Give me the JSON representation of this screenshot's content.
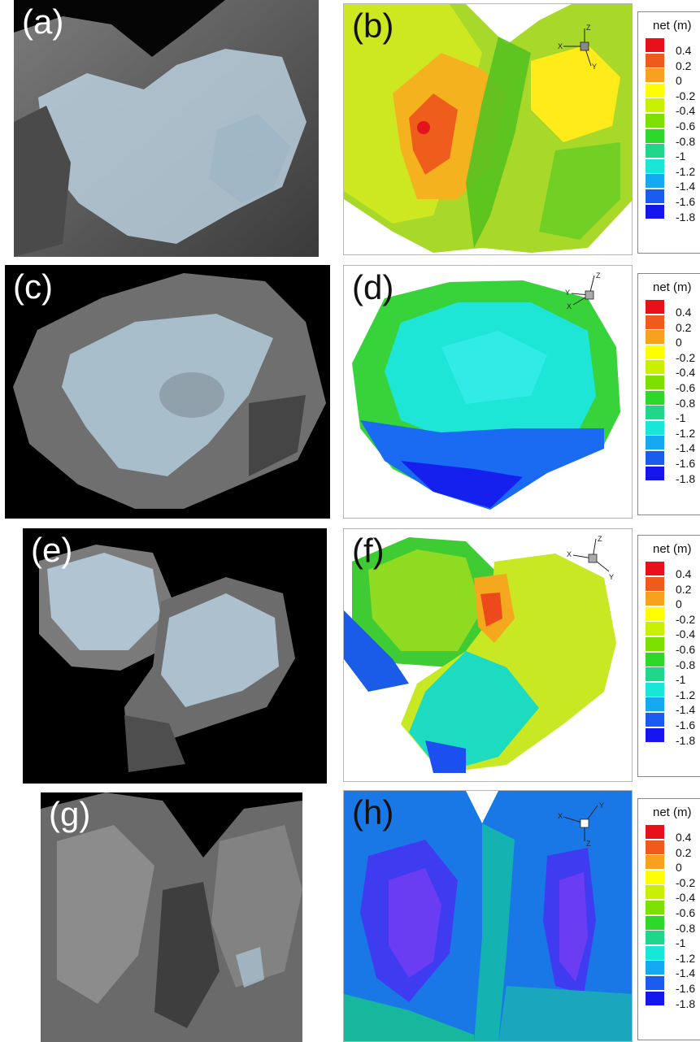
{
  "panels": [
    {
      "label": "(a)"
    },
    {
      "label": "(b)"
    },
    {
      "label": "(c)"
    },
    {
      "label": "(d)"
    },
    {
      "label": "(e)"
    },
    {
      "label": "(f)"
    },
    {
      "label": "(g)"
    },
    {
      "label": "(h)"
    }
  ],
  "legend": {
    "title": "net (m)",
    "ticks": [
      "0.4",
      "0.2",
      "0",
      "-0.2",
      "-0.4",
      "-0.6",
      "-0.8",
      "-1",
      "-1.2",
      "-1.4",
      "-1.6",
      "-1.8"
    ],
    "colors": [
      "#e8101a",
      "#f05a1c",
      "#f7a21e",
      "#ffff00",
      "#c8f000",
      "#7ee000",
      "#2ed82a",
      "#1fd68a",
      "#17e6d9",
      "#14a9f0",
      "#1a5cf0",
      "#1515ef"
    ]
  },
  "axes": {
    "x": "X",
    "y": "Y",
    "z": "Z"
  }
}
